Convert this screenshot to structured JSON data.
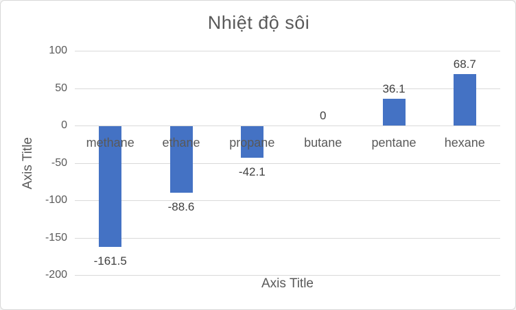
{
  "chart_data": {
    "type": "bar",
    "title": "Nhiệt độ sôi",
    "xlabel": "Axis Title",
    "ylabel": "Axis Title",
    "categories": [
      "methane",
      "ethane",
      "propane",
      "butane",
      "pentane",
      "hexane"
    ],
    "values": [
      -161.5,
      -88.6,
      -42.1,
      0,
      36.1,
      68.7
    ],
    "data_labels": [
      "-161.5",
      "-88.6",
      "-42.1",
      "0",
      "36.1",
      "68.7"
    ],
    "yticks": [
      100,
      50,
      0,
      -50,
      -100,
      -150,
      -200
    ],
    "ylim": [
      -200,
      100
    ],
    "grid": true,
    "legend": false,
    "series_name": "",
    "bar_color": "#4472C4",
    "gridline_color": "#D9D9D9",
    "axis_text_color": "#595959",
    "data_label_color": "#404040"
  }
}
